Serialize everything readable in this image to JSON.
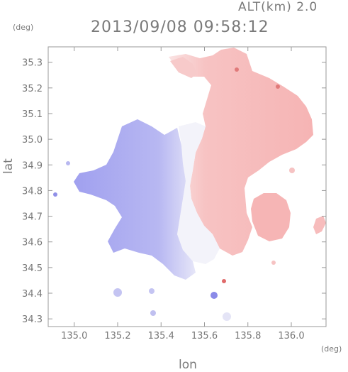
{
  "header": {
    "altitude_label": "ALT(km) 2.0",
    "timestamp": "2013/09/08 09:58:12"
  },
  "axes": {
    "y_unit": "(deg)",
    "x_unit": "(deg)",
    "y_label": "lat",
    "x_label": "lon",
    "lat_ticks": [
      "35.3",
      "35.2",
      "35.1",
      "35.0",
      "34.9",
      "34.8",
      "34.7",
      "34.6",
      "34.5",
      "34.4",
      "34.3"
    ],
    "lon_ticks": [
      "135.0",
      "135.2",
      "135.4",
      "135.6",
      "135.8",
      "136.0"
    ]
  },
  "chart_data": {
    "type": "heatmap",
    "xlim": [
      134.88,
      136.16
    ],
    "ylim": [
      34.27,
      35.36
    ],
    "colors": {
      "negative": "#9e9ef0",
      "positive": "#f5b3b3",
      "zero": "#f4f4fb"
    }
  }
}
